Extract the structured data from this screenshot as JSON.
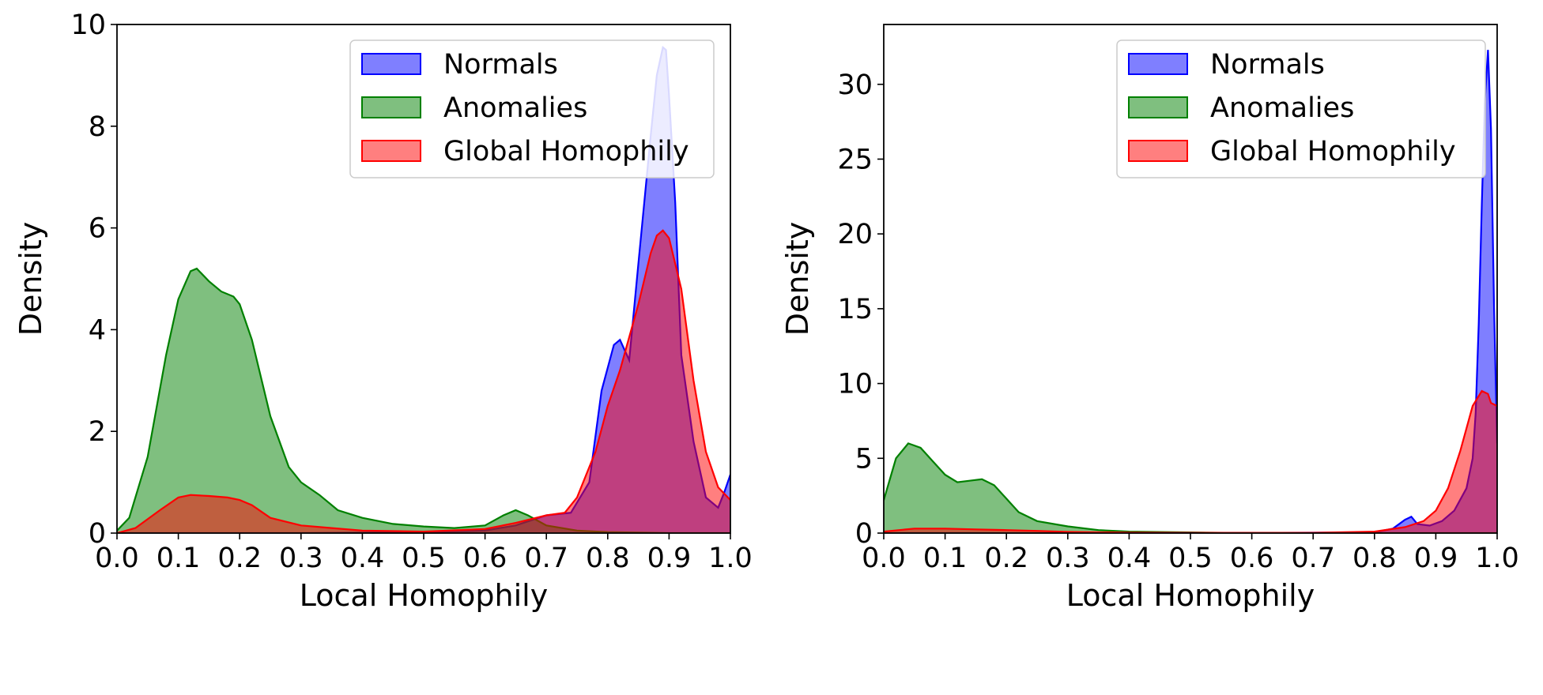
{
  "chart_data": [
    {
      "type": "area",
      "xlabel": "Local Homophily",
      "ylabel": "Density",
      "xlim": [
        0.0,
        1.0
      ],
      "ylim": [
        0,
        10
      ],
      "xticks": [
        "0.0",
        "0.1",
        "0.2",
        "0.3",
        "0.4",
        "0.5",
        "0.6",
        "0.7",
        "0.8",
        "0.9",
        "1.0"
      ],
      "yticks": [
        "0",
        "2",
        "4",
        "6",
        "8",
        "10"
      ],
      "legend_position": "top-right",
      "grid": false,
      "series": [
        {
          "name": "Normals",
          "color": "#0000ff",
          "x": [
            0.0,
            0.3,
            0.5,
            0.6,
            0.65,
            0.7,
            0.74,
            0.77,
            0.79,
            0.81,
            0.82,
            0.835,
            0.85,
            0.87,
            0.88,
            0.89,
            0.895,
            0.9,
            0.91,
            0.92,
            0.94,
            0.96,
            0.98,
            0.99,
            1.0
          ],
          "y": [
            0.0,
            0.0,
            0.02,
            0.05,
            0.15,
            0.35,
            0.4,
            1.0,
            2.8,
            3.7,
            3.8,
            3.4,
            5.3,
            7.8,
            9.0,
            9.55,
            9.5,
            8.6,
            6.5,
            3.5,
            1.8,
            0.7,
            0.5,
            0.8,
            1.15
          ]
        },
        {
          "name": "Anomalies",
          "color": "#008000",
          "x": [
            0.0,
            0.02,
            0.05,
            0.08,
            0.1,
            0.12,
            0.13,
            0.15,
            0.17,
            0.19,
            0.2,
            0.22,
            0.25,
            0.28,
            0.3,
            0.33,
            0.36,
            0.4,
            0.45,
            0.5,
            0.55,
            0.6,
            0.63,
            0.65,
            0.67,
            0.7,
            0.75,
            0.8,
            0.9,
            1.0
          ],
          "y": [
            0.05,
            0.3,
            1.5,
            3.5,
            4.6,
            5.15,
            5.2,
            4.95,
            4.75,
            4.65,
            4.5,
            3.8,
            2.3,
            1.3,
            1.0,
            0.75,
            0.45,
            0.3,
            0.18,
            0.13,
            0.1,
            0.15,
            0.35,
            0.45,
            0.35,
            0.15,
            0.05,
            0.02,
            0.0,
            0.0
          ]
        },
        {
          "name": "Global Homophily",
          "color": "#ff0000",
          "x": [
            0.0,
            0.03,
            0.07,
            0.1,
            0.12,
            0.15,
            0.18,
            0.2,
            0.22,
            0.25,
            0.3,
            0.35,
            0.4,
            0.5,
            0.6,
            0.65,
            0.7,
            0.73,
            0.75,
            0.78,
            0.8,
            0.82,
            0.85,
            0.87,
            0.88,
            0.89,
            0.9,
            0.92,
            0.94,
            0.96,
            0.98,
            1.0
          ],
          "y": [
            0.0,
            0.1,
            0.45,
            0.7,
            0.75,
            0.73,
            0.7,
            0.65,
            0.55,
            0.3,
            0.15,
            0.1,
            0.05,
            0.03,
            0.08,
            0.2,
            0.35,
            0.4,
            0.7,
            1.6,
            2.5,
            3.2,
            4.5,
            5.5,
            5.85,
            5.95,
            5.8,
            4.8,
            3.0,
            1.6,
            0.9,
            0.65
          ]
        }
      ]
    },
    {
      "type": "area",
      "xlabel": "Local Homophily",
      "ylabel": "Density",
      "xlim": [
        0.0,
        1.0
      ],
      "ylim": [
        0,
        34
      ],
      "xticks": [
        "0.0",
        "0.1",
        "0.2",
        "0.3",
        "0.4",
        "0.5",
        "0.6",
        "0.7",
        "0.8",
        "0.9",
        "1.0"
      ],
      "yticks": [
        "0",
        "5",
        "10",
        "15",
        "20",
        "25",
        "30"
      ],
      "legend_position": "top-right",
      "grid": false,
      "series": [
        {
          "name": "Normals",
          "color": "#0000ff",
          "x": [
            0.0,
            0.5,
            0.8,
            0.83,
            0.85,
            0.86,
            0.87,
            0.89,
            0.91,
            0.93,
            0.95,
            0.96,
            0.965,
            0.97,
            0.975,
            0.98,
            0.985,
            0.99,
            0.995,
            1.0
          ],
          "y": [
            0.0,
            0.0,
            0.05,
            0.3,
            0.9,
            1.1,
            0.6,
            0.5,
            0.8,
            1.5,
            3.0,
            5.0,
            8.0,
            14.0,
            22.0,
            29.0,
            32.3,
            27.0,
            15.0,
            6.0
          ]
        },
        {
          "name": "Anomalies",
          "color": "#008000",
          "x": [
            0.0,
            0.02,
            0.04,
            0.06,
            0.08,
            0.1,
            0.12,
            0.14,
            0.16,
            0.18,
            0.2,
            0.22,
            0.25,
            0.3,
            0.35,
            0.4,
            0.5,
            0.6,
            1.0
          ],
          "y": [
            2.2,
            5.0,
            6.0,
            5.7,
            4.8,
            3.9,
            3.4,
            3.5,
            3.6,
            3.2,
            2.3,
            1.4,
            0.8,
            0.45,
            0.2,
            0.1,
            0.05,
            0.0,
            0.0
          ]
        },
        {
          "name": "Global Homophily",
          "color": "#ff0000",
          "x": [
            0.0,
            0.05,
            0.1,
            0.15,
            0.2,
            0.25,
            0.3,
            0.4,
            0.5,
            0.7,
            0.8,
            0.85,
            0.88,
            0.9,
            0.92,
            0.94,
            0.96,
            0.975,
            0.985,
            0.99,
            1.0
          ],
          "y": [
            0.1,
            0.3,
            0.3,
            0.25,
            0.2,
            0.15,
            0.08,
            0.03,
            0.02,
            0.02,
            0.1,
            0.4,
            0.8,
            1.5,
            3.0,
            5.5,
            8.5,
            9.5,
            9.3,
            8.7,
            8.5
          ]
        }
      ]
    }
  ]
}
